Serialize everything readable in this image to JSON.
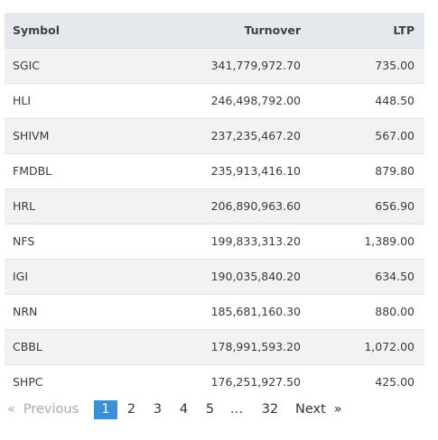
{
  "table": {
    "columns": [
      "Symbol",
      "Turnover",
      "LTP"
    ],
    "rows": [
      {
        "symbol": "SGIC",
        "turnover": "341,779,972.70",
        "ltp": "735.00"
      },
      {
        "symbol": "HLI",
        "turnover": "246,498,792.00",
        "ltp": "448.50"
      },
      {
        "symbol": "SHIVM",
        "turnover": "237,235,467.20",
        "ltp": "567.00"
      },
      {
        "symbol": "FMDBL",
        "turnover": "235,913,416.10",
        "ltp": "879.80"
      },
      {
        "symbol": "HRL",
        "turnover": "206,890,963.60",
        "ltp": "656.90"
      },
      {
        "symbol": "NFS",
        "turnover": "199,833,313.20",
        "ltp": "1,389.00"
      },
      {
        "symbol": "IGI",
        "turnover": "190,035,840.20",
        "ltp": "634.50"
      },
      {
        "symbol": "NRN",
        "turnover": "185,681,160.30",
        "ltp": "880.00"
      },
      {
        "symbol": "CBBL",
        "turnover": "178,991,593.20",
        "ltp": "1,072.00"
      },
      {
        "symbol": "SHPC",
        "turnover": "176,251,927.50",
        "ltp": "425.00"
      }
    ]
  },
  "pagination": {
    "previous_icon": "«",
    "previous_label": "Previous",
    "pages": [
      "1",
      "2",
      "3",
      "4",
      "5"
    ],
    "current_page": "1",
    "ellipsis": "…",
    "last_page": "32",
    "next_label": "Next",
    "next_icon": "»"
  },
  "colors": {
    "header_bg": "#e5e8ec",
    "stripe_bg": "#f2f2f2",
    "active_page_bg": "#3a8fd5"
  }
}
